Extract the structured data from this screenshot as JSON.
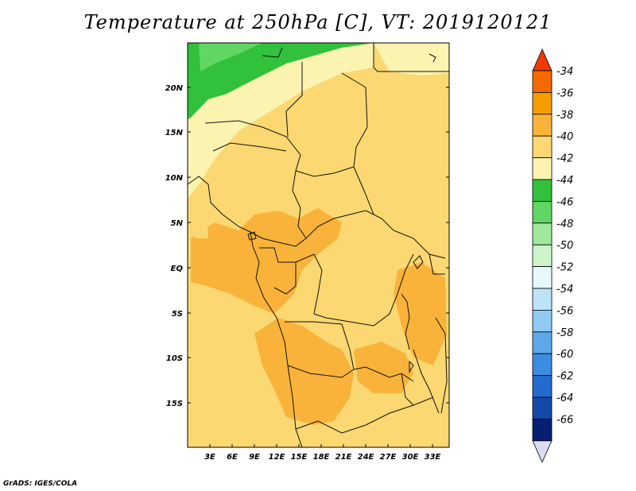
{
  "title": "Temperature at 250hPa [C], VT: 2019120121",
  "credit": "GrADS: IGES/COLA",
  "map": {
    "lat_labels": [
      "20N",
      "15N",
      "10N",
      "5N",
      "EQ",
      "5S",
      "10S",
      "15S"
    ],
    "lon_labels": [
      "3E",
      "6E",
      "9E",
      "12E",
      "15E",
      "18E",
      "21E",
      "24E",
      "27E",
      "30E",
      "33E"
    ]
  },
  "colorbar": {
    "labels": [
      "-34",
      "-36",
      "-38",
      "-40",
      "-42",
      "-44",
      "-46",
      "-48",
      "-50",
      "-52",
      "-54",
      "-56",
      "-58",
      "-60",
      "-62",
      "-64",
      "-66"
    ],
    "colors": [
      "#ee3a00",
      "#f26a00",
      "#f59d00",
      "#f9b33a",
      "#fbd872",
      "#fbf4b0",
      "#31c13a",
      "#60d663",
      "#9fe89c",
      "#cdf3cb",
      "#e7f8fc",
      "#bde3f8",
      "#8fcaf2",
      "#5aa9ea",
      "#3a8ee2",
      "#236bcf",
      "#1349a8",
      "#06206f",
      "#dcdcf4"
    ]
  }
}
